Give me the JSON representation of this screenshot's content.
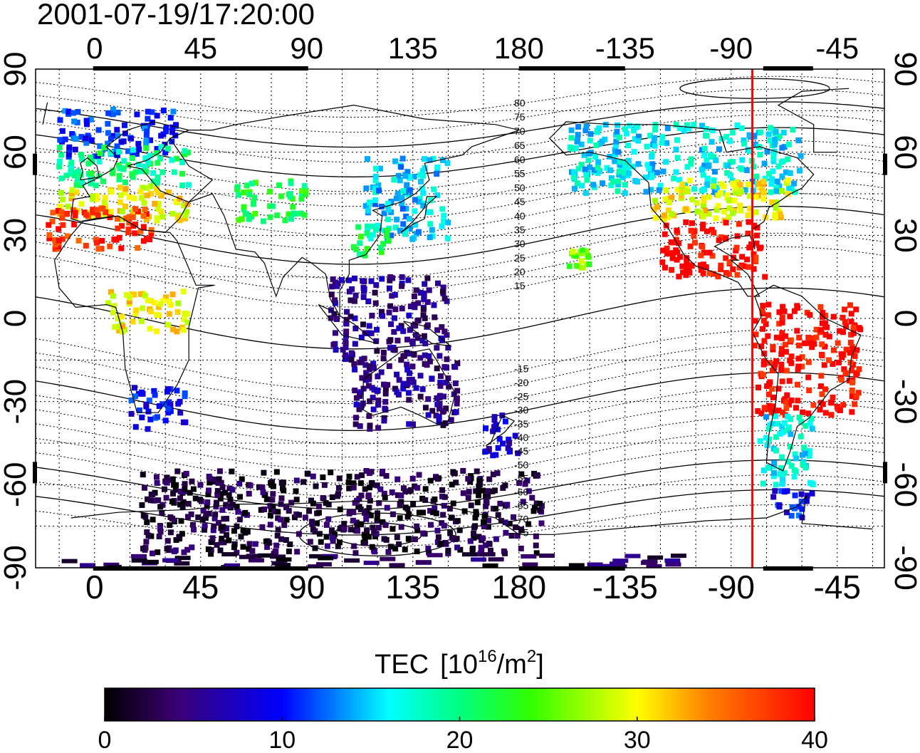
{
  "timestamp": "2001-07-19/17:20:00",
  "longitude_ticks": [
    "0",
    "45",
    "90",
    "135",
    "180",
    "-135",
    "-90",
    "-45"
  ],
  "latitude_ticks": [
    "90",
    "60",
    "30",
    "0",
    "-30",
    "-60",
    "-90"
  ],
  "mlat_labels": [
    "80",
    "75",
    "70",
    "65",
    "60",
    "55",
    "50",
    "45",
    "40",
    "35",
    "30",
    "25",
    "20",
    "15",
    "-15",
    "-20",
    "-25",
    "-30",
    "-35",
    "-40",
    "-45",
    "-50",
    "-55",
    "-60",
    "-65",
    "-70",
    "-75"
  ],
  "colorbar": {
    "title": "TEC",
    "units_prefix": "[10",
    "units_exp": "16",
    "units_mid": "/m",
    "units_exp2": "2",
    "units_suffix": "]",
    "tick_labels": [
      "0",
      "10",
      "20",
      "30",
      "40"
    ],
    "range": [
      0,
      40
    ]
  },
  "colors": {
    "meridian_line": "#ff0000",
    "coastline": "#000000",
    "grid": "#000000"
  },
  "marker_meridian_lon": -81,
  "tec_regions": [
    {
      "region": "northern-europe",
      "lon": [
        -15,
        35
      ],
      "lat": [
        58,
        76
      ],
      "tec": 11
    },
    {
      "region": "central-europe",
      "lon": [
        -15,
        40
      ],
      "lat": [
        48,
        62
      ],
      "tec": 20
    },
    {
      "region": "southern-europe",
      "lon": [
        -15,
        40
      ],
      "lat": [
        35,
        48
      ],
      "tec": 30
    },
    {
      "region": "mediterranean-north-africa",
      "lon": [
        -20,
        25
      ],
      "lat": [
        25,
        40
      ],
      "tec": 38
    },
    {
      "region": "central-asia",
      "lon": [
        60,
        90
      ],
      "lat": [
        35,
        50
      ],
      "tec": 22
    },
    {
      "region": "east-asia-japan",
      "lon": [
        115,
        150
      ],
      "lat": [
        28,
        58
      ],
      "tec": 15
    },
    {
      "region": "china-south",
      "lon": [
        110,
        125
      ],
      "lat": [
        22,
        34
      ],
      "tec": 21
    },
    {
      "region": "maritime-se-asia",
      "lon": [
        100,
        150
      ],
      "lat": [
        -15,
        15
      ],
      "tec": 5
    },
    {
      "region": "australia",
      "lon": [
        110,
        155
      ],
      "lat": [
        -40,
        -15
      ],
      "tec": 5
    },
    {
      "region": "new-zealand",
      "lon": [
        165,
        180
      ],
      "lat": [
        -50,
        -35
      ],
      "tec": 8
    },
    {
      "region": "southern-ocean",
      "lon": [
        20,
        190
      ],
      "lat": [
        -85,
        -55
      ],
      "tec": 2
    },
    {
      "region": "north-america-north",
      "lon": [
        -160,
        -60
      ],
      "lat": [
        45,
        70
      ],
      "tec": 16
    },
    {
      "region": "north-america-mid",
      "lon": [
        -125,
        -65
      ],
      "lat": [
        35,
        50
      ],
      "tec": 30
    },
    {
      "region": "north-america-south",
      "lon": [
        -120,
        -75
      ],
      "lat": [
        15,
        35
      ],
      "tec": 40
    },
    {
      "region": "south-america",
      "lon": [
        -80,
        -35
      ],
      "lat": [
        -35,
        5
      ],
      "tec": 40
    },
    {
      "region": "patagonia",
      "lon": [
        -78,
        -55
      ],
      "lat": [
        -60,
        -35
      ],
      "tec": 16
    },
    {
      "region": "antarctic-peninsula",
      "lon": [
        -75,
        -55
      ],
      "lat": [
        -72,
        -62
      ],
      "tec": 10
    },
    {
      "region": "southern-africa",
      "lon": [
        15,
        40
      ],
      "lat": [
        -40,
        -25
      ],
      "tec": 10
    },
    {
      "region": "central-africa",
      "lon": [
        5,
        40
      ],
      "lat": [
        -5,
        10
      ],
      "tec": 30
    },
    {
      "region": "hawaii",
      "lon": [
        -160,
        -150
      ],
      "lat": [
        18,
        25
      ],
      "tec": 26
    },
    {
      "region": "antarctica-coast",
      "lon": [
        -20,
        250
      ],
      "lat": [
        -90,
        -85
      ],
      "tec": 3
    }
  ]
}
